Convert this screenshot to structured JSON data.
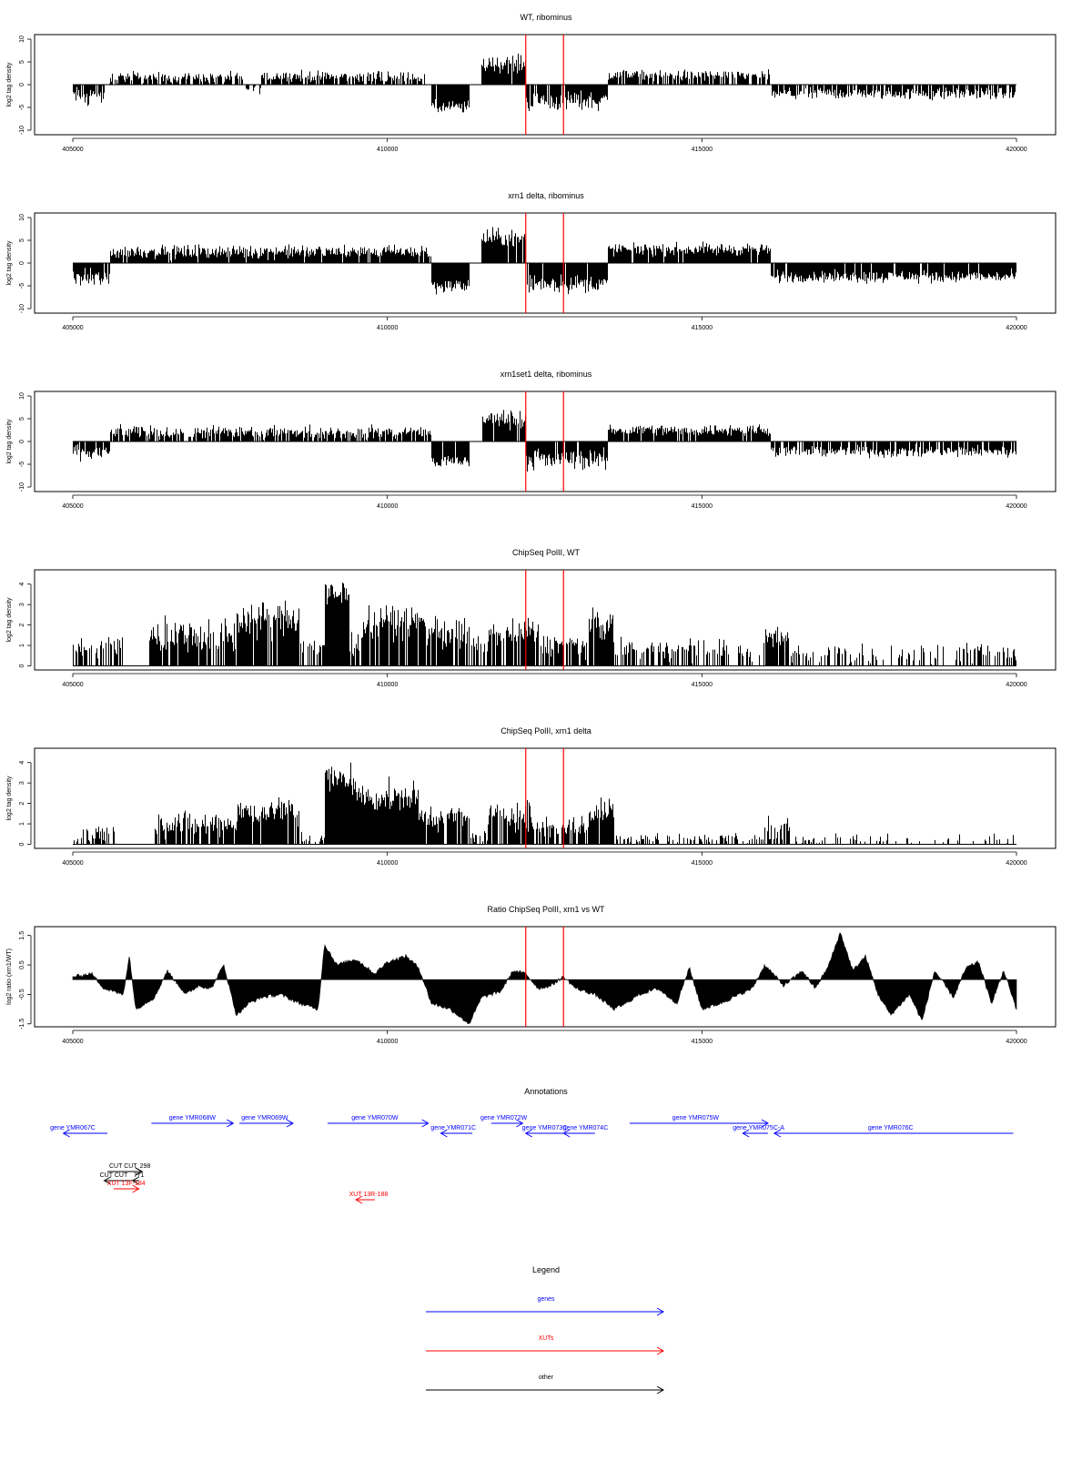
{
  "colors": {
    "data": "#000000",
    "marker": "#ff0000",
    "gene": "#0000ff",
    "xut": "#ff0000",
    "other": "#000000",
    "frame": "#000000"
  },
  "xaxis": {
    "range": [
      405000,
      420000
    ],
    "ticks": [
      405000,
      410000,
      415000,
      420000
    ],
    "tick_labels": [
      "405000",
      "410000",
      "415000",
      "420000"
    ]
  },
  "markers_x": [
    412200,
    412800
  ],
  "chart_data": [
    {
      "type": "bar",
      "title": "WT, ribominus",
      "ylabel": "log2 tag density",
      "ylim": [
        -11,
        11
      ],
      "yticks": [
        -10,
        -5,
        0,
        5,
        10
      ],
      "ytick_labels": [
        "-10",
        "-5",
        "0",
        "5",
        "10"
      ],
      "segments": [
        {
          "from": 405000,
          "to": 405500,
          "mean": -2.5,
          "spread": 2.0,
          "density": 0.85
        },
        {
          "from": 405500,
          "to": 405600,
          "mean": 0.3,
          "spread": 0.8,
          "density": 0.4
        },
        {
          "from": 405600,
          "to": 407700,
          "mean": 1.6,
          "spread": 1.2,
          "density": 0.8
        },
        {
          "from": 407700,
          "to": 408000,
          "mean": -1.0,
          "spread": 1.0,
          "density": 0.5
        },
        {
          "from": 408000,
          "to": 410600,
          "mean": 1.8,
          "spread": 1.3,
          "density": 0.8
        },
        {
          "from": 410700,
          "to": 411300,
          "mean": -5.0,
          "spread": 1.5,
          "density": 0.95
        },
        {
          "from": 411500,
          "to": 412200,
          "mean": 4.5,
          "spread": 2.0,
          "density": 0.95
        },
        {
          "from": 412200,
          "to": 413500,
          "mean": -3.5,
          "spread": 2.2,
          "density": 0.9
        },
        {
          "from": 413500,
          "to": 416100,
          "mean": 2.0,
          "spread": 1.2,
          "density": 0.8
        },
        {
          "from": 416100,
          "to": 420000,
          "mean": -2.0,
          "spread": 1.3,
          "density": 0.85
        }
      ]
    },
    {
      "type": "bar",
      "title": "xrn1 delta, ribominus",
      "ylabel": "log2 tag density",
      "ylim": [
        -11,
        11
      ],
      "yticks": [
        -10,
        -5,
        0,
        5,
        10
      ],
      "ytick_labels": [
        "-10",
        "-5",
        "0",
        "5",
        "10"
      ],
      "segments": [
        {
          "from": 405000,
          "to": 405600,
          "mean": -3.5,
          "spread": 2.0,
          "density": 0.9
        },
        {
          "from": 405600,
          "to": 410700,
          "mean": 2.5,
          "spread": 1.5,
          "density": 0.95
        },
        {
          "from": 410700,
          "to": 411300,
          "mean": -5.0,
          "spread": 1.6,
          "density": 0.95
        },
        {
          "from": 411500,
          "to": 412200,
          "mean": 5.5,
          "spread": 2.0,
          "density": 0.98
        },
        {
          "from": 412200,
          "to": 413500,
          "mean": -4.5,
          "spread": 2.0,
          "density": 0.95
        },
        {
          "from": 413500,
          "to": 416100,
          "mean": 3.0,
          "spread": 1.4,
          "density": 0.95
        },
        {
          "from": 416100,
          "to": 420000,
          "mean": -3.0,
          "spread": 1.3,
          "density": 0.95
        }
      ]
    },
    {
      "type": "bar",
      "title": "xrn1set1 delta, ribominus",
      "ylabel": "log2 tag density",
      "ylim": [
        -11,
        11
      ],
      "yticks": [
        -10,
        -5,
        0,
        5,
        10
      ],
      "ytick_labels": [
        "-10",
        "-5",
        "0",
        "5",
        "10"
      ],
      "segments": [
        {
          "from": 405000,
          "to": 405600,
          "mean": -2.5,
          "spread": 1.8,
          "density": 0.85
        },
        {
          "from": 405600,
          "to": 410700,
          "mean": 2.0,
          "spread": 1.4,
          "density": 0.85
        },
        {
          "from": 410700,
          "to": 411300,
          "mean": -4.5,
          "spread": 1.5,
          "density": 0.95
        },
        {
          "from": 411500,
          "to": 412200,
          "mean": 5.0,
          "spread": 2.0,
          "density": 0.95
        },
        {
          "from": 412200,
          "to": 413500,
          "mean": -4.0,
          "spread": 2.2,
          "density": 0.9
        },
        {
          "from": 413500,
          "to": 416100,
          "mean": 2.5,
          "spread": 1.3,
          "density": 0.9
        },
        {
          "from": 416100,
          "to": 420000,
          "mean": -2.2,
          "spread": 1.3,
          "density": 0.85
        }
      ]
    },
    {
      "type": "bar",
      "title": "ChipSeq PolII, WT",
      "ylabel": "log2 tag density",
      "ylim": [
        -0.2,
        4.7
      ],
      "yticks": [
        0,
        1,
        2,
        3,
        4
      ],
      "ytick_labels": [
        "0",
        "1",
        "2",
        "3",
        "4"
      ],
      "segments": [
        {
          "from": 405000,
          "to": 405800,
          "mean": 1.0,
          "spread": 0.6,
          "density": 0.6
        },
        {
          "from": 406200,
          "to": 407600,
          "mean": 1.5,
          "spread": 0.9,
          "density": 0.8
        },
        {
          "from": 407600,
          "to": 408600,
          "mean": 2.3,
          "spread": 0.9,
          "density": 0.95
        },
        {
          "from": 408600,
          "to": 409000,
          "mean": 1.0,
          "spread": 0.5,
          "density": 0.6
        },
        {
          "from": 409000,
          "to": 409400,
          "mean": 3.4,
          "spread": 0.8,
          "density": 1.0
        },
        {
          "from": 409400,
          "to": 409600,
          "mean": 1.0,
          "spread": 0.5,
          "density": 0.6
        },
        {
          "from": 409600,
          "to": 410600,
          "mean": 2.2,
          "spread": 0.8,
          "density": 0.95
        },
        {
          "from": 410600,
          "to": 411300,
          "mean": 1.6,
          "spread": 0.8,
          "density": 0.85
        },
        {
          "from": 411300,
          "to": 411600,
          "mean": 1.0,
          "spread": 0.4,
          "density": 0.6
        },
        {
          "from": 411600,
          "to": 412400,
          "mean": 1.6,
          "spread": 0.8,
          "density": 0.85
        },
        {
          "from": 412400,
          "to": 413200,
          "mean": 1.0,
          "spread": 0.5,
          "density": 0.7
        },
        {
          "from": 413200,
          "to": 413600,
          "mean": 2.0,
          "spread": 0.8,
          "density": 0.95
        },
        {
          "from": 413600,
          "to": 416000,
          "mean": 0.8,
          "spread": 0.5,
          "density": 0.5
        },
        {
          "from": 416000,
          "to": 416400,
          "mean": 1.3,
          "spread": 0.6,
          "density": 0.75
        },
        {
          "from": 416400,
          "to": 420000,
          "mean": 0.6,
          "spread": 0.5,
          "density": 0.3
        }
      ]
    },
    {
      "type": "bar",
      "title": "ChipSeq PolII, xrn1 delta",
      "ylabel": "log2 tag density",
      "ylim": [
        -0.2,
        4.7
      ],
      "yticks": [
        0,
        1,
        2,
        3,
        4
      ],
      "ytick_labels": [
        "0",
        "1",
        "2",
        "3",
        "4"
      ],
      "segments": [
        {
          "from": 405000,
          "to": 405700,
          "mean": 0.5,
          "spread": 0.5,
          "density": 0.5
        },
        {
          "from": 406300,
          "to": 407600,
          "mean": 1.0,
          "spread": 0.6,
          "density": 0.8
        },
        {
          "from": 407600,
          "to": 408600,
          "mean": 1.6,
          "spread": 0.7,
          "density": 0.95
        },
        {
          "from": 408600,
          "to": 409000,
          "mean": 0.3,
          "spread": 0.3,
          "density": 0.4
        },
        {
          "from": 409000,
          "to": 409500,
          "mean": 3.2,
          "spread": 0.8,
          "density": 1.0
        },
        {
          "from": 409500,
          "to": 410500,
          "mean": 2.3,
          "spread": 0.7,
          "density": 0.98
        },
        {
          "from": 410500,
          "to": 411300,
          "mean": 1.3,
          "spread": 0.6,
          "density": 0.9
        },
        {
          "from": 411300,
          "to": 411600,
          "mean": 0.4,
          "spread": 0.3,
          "density": 0.5
        },
        {
          "from": 411600,
          "to": 412300,
          "mean": 1.4,
          "spread": 0.7,
          "density": 0.9
        },
        {
          "from": 412300,
          "to": 413200,
          "mean": 0.8,
          "spread": 0.5,
          "density": 0.7
        },
        {
          "from": 413200,
          "to": 413600,
          "mean": 1.6,
          "spread": 0.7,
          "density": 0.95
        },
        {
          "from": 413600,
          "to": 416000,
          "mean": 0.3,
          "spread": 0.3,
          "density": 0.4
        },
        {
          "from": 416000,
          "to": 416400,
          "mean": 0.8,
          "spread": 0.5,
          "density": 0.8
        },
        {
          "from": 416400,
          "to": 420000,
          "mean": 0.2,
          "spread": 0.3,
          "density": 0.25
        }
      ]
    },
    {
      "type": "area",
      "title": "Ratio ChipSeq PolII, xrn1 vs WT",
      "ylabel": "log2 ratio (xrn1/WT)",
      "ylim": [
        -1.6,
        1.8
      ],
      "yticks": [
        -1.5,
        -0.5,
        0.5,
        1.5
      ],
      "ytick_labels": [
        "-1.5",
        "-0.5",
        "0.5",
        "1.5"
      ],
      "x": [
        405000,
        405300,
        405500,
        405800,
        405900,
        406000,
        406300,
        406500,
        406800,
        407000,
        407200,
        407400,
        407600,
        407800,
        408000,
        408300,
        408600,
        408900,
        409000,
        409200,
        409500,
        409800,
        410000,
        410300,
        410500,
        410700,
        411000,
        411300,
        411500,
        411800,
        412000,
        412200,
        412400,
        412600,
        412800,
        413000,
        413300,
        413600,
        413800,
        414000,
        414300,
        414600,
        414800,
        415000,
        415300,
        415600,
        415800,
        416000,
        416300,
        416600,
        416800,
        417000,
        417200,
        417400,
        417600,
        417800,
        418000,
        418300,
        418500,
        418700,
        419000,
        419200,
        419400,
        419600,
        419800,
        420000
      ],
      "y": [
        0.1,
        0.2,
        -0.3,
        -0.5,
        0.8,
        -1.0,
        -0.6,
        0.3,
        -0.5,
        -0.2,
        -0.3,
        0.5,
        -1.2,
        -0.8,
        -0.6,
        -0.5,
        -0.8,
        -1.0,
        1.2,
        0.5,
        0.7,
        0.2,
        0.6,
        0.8,
        0.4,
        -0.8,
        -1.0,
        -1.5,
        -0.6,
        -0.4,
        0.3,
        0.2,
        -0.3,
        -0.2,
        0.1,
        -0.3,
        -0.5,
        -1.0,
        -0.8,
        -0.5,
        -0.3,
        -0.8,
        0.4,
        -1.0,
        -0.8,
        -0.5,
        -0.3,
        0.5,
        -0.2,
        0.3,
        -0.3,
        0.4,
        1.6,
        0.3,
        0.8,
        -0.5,
        -1.2,
        -0.5,
        -1.4,
        0.3,
        -0.6,
        0.4,
        0.6,
        -0.8,
        0.3,
        -1.0
      ]
    }
  ],
  "annotations": {
    "title": "Annotations",
    "features": [
      {
        "label": "gene YMR067C",
        "type": "gene",
        "from": 404850,
        "to": 405550,
        "strand": "-",
        "row": 1,
        "label_x": 405000
      },
      {
        "label": "gene YMR068W",
        "type": "gene",
        "from": 406250,
        "to": 407550,
        "strand": "+",
        "row": 0,
        "label_x": 406900
      },
      {
        "label": "gene YMR069W",
        "type": "gene",
        "from": 407650,
        "to": 408500,
        "strand": "+",
        "row": 0,
        "label_x": 408050
      },
      {
        "label": "gene YMR070W",
        "type": "gene",
        "from": 409050,
        "to": 410650,
        "strand": "+",
        "row": 0,
        "label_x": 409800
      },
      {
        "label": "gene YMR071C",
        "type": "gene",
        "from": 410850,
        "to": 411350,
        "strand": "-",
        "row": 1,
        "label_x": 411050
      },
      {
        "label": "gene YMR072W",
        "type": "gene",
        "from": 411650,
        "to": 412150,
        "strand": "+",
        "row": 0,
        "label_x": 411850
      },
      {
        "label": "gene YMR073C",
        "type": "gene",
        "from": 412200,
        "to": 412800,
        "strand": "-",
        "row": 1,
        "label_x": 412500
      },
      {
        "label": "gene YMR074C",
        "type": "gene",
        "from": 412800,
        "to": 413300,
        "strand": "-",
        "row": 1,
        "label_x": 413150
      },
      {
        "label": "gene YMR075W",
        "type": "gene",
        "from": 413850,
        "to": 416050,
        "strand": "+",
        "row": 0,
        "label_x": 414900
      },
      {
        "label": "gene YMR075C-A",
        "type": "gene",
        "from": 415650,
        "to": 416050,
        "strand": "-",
        "row": 1,
        "label_x": 415900
      },
      {
        "label": "gene YMR076C",
        "type": "gene",
        "from": 416150,
        "to": 419950,
        "strand": "-",
        "row": 1,
        "label_x": 418000
      }
    ],
    "small_features": [
      {
        "label": "CUT CUT",
        "type": "other",
        "from": 405550,
        "to": 406100,
        "strand": "+",
        "label_x": 405800,
        "y_offset": 83
      },
      {
        "label": "298",
        "type": "other",
        "from": 406050,
        "to": 406100,
        "strand": "+",
        "label_x": 406150,
        "y_offset": 83
      },
      {
        "label": "CUT CUT",
        "type": "other",
        "from": 405500,
        "to": 406050,
        "strand": "-",
        "label_x": 405650,
        "y_offset": 93
      },
      {
        "label": "771",
        "type": "other",
        "from": 405950,
        "to": 406050,
        "strand": "-",
        "label_x": 406050,
        "y_offset": 93
      },
      {
        "label": "XUT 13F-184",
        "type": "xut",
        "from": 405650,
        "to": 406050,
        "strand": "+",
        "label_x": 405850,
        "y_offset": 102
      },
      {
        "label": "XUT 13R-188",
        "type": "xut",
        "from": 409500,
        "to": 409800,
        "strand": "-",
        "label_x": 409700,
        "y_offset": 114
      }
    ]
  },
  "legend": {
    "title": "Legend",
    "items": [
      {
        "label": "genes",
        "type": "gene"
      },
      {
        "label": "XUTs",
        "type": "xut"
      },
      {
        "label": "other",
        "type": "other"
      }
    ]
  }
}
